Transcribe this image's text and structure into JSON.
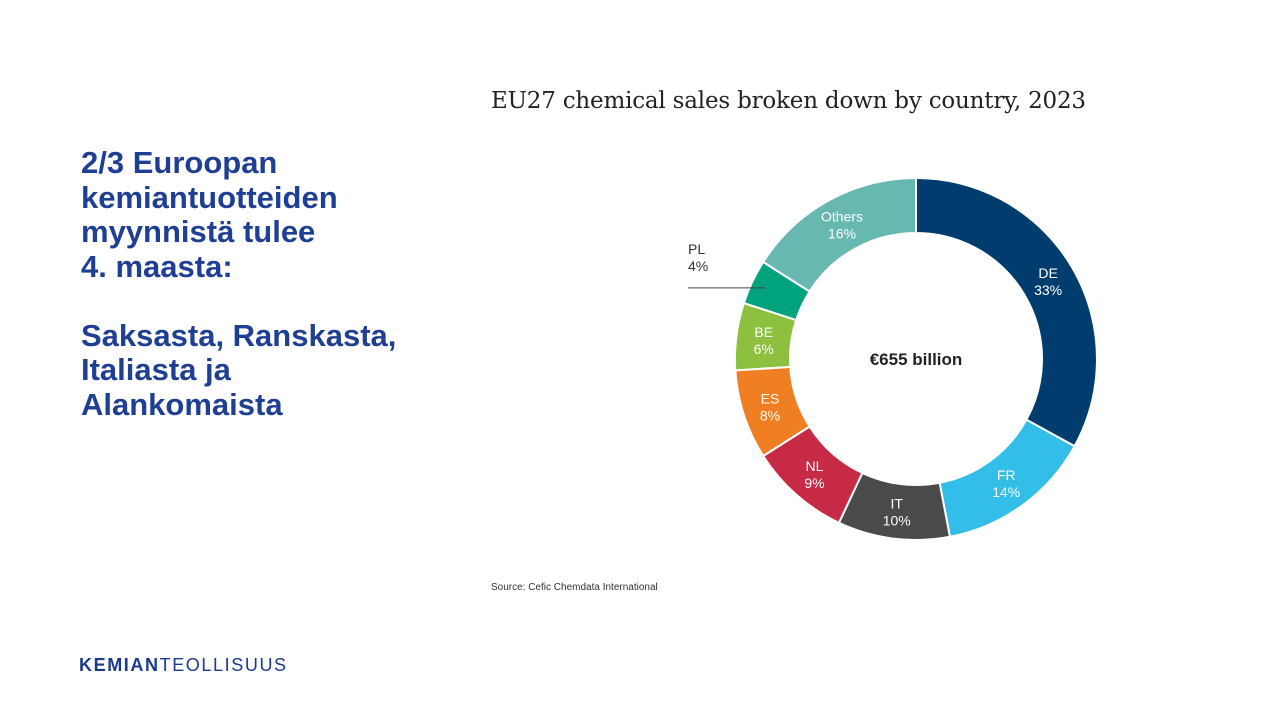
{
  "headline": {
    "lines": [
      "2/3 Euroopan",
      "kemiantuotteiden",
      "myynnistä tulee",
      "4. maasta:"
    ],
    "lines2": [
      "Saksasta, Ranskasta,",
      "Italiasta ja",
      "Alankomaista"
    ]
  },
  "chart_data": {
    "type": "pie",
    "title": "EU27 chemical sales broken down by country, 2023",
    "center_label": "€655 billion",
    "slices": [
      {
        "label": "DE",
        "value": 33,
        "value_label": "33%",
        "color": "#003d6e"
      },
      {
        "label": "FR",
        "value": 14,
        "value_label": "14%",
        "color": "#33bde9"
      },
      {
        "label": "IT",
        "value": 10,
        "value_label": "10%",
        "color": "#4a4a4a"
      },
      {
        "label": "NL",
        "value": 9,
        "value_label": "9%",
        "color": "#c72a44"
      },
      {
        "label": "ES",
        "value": 8,
        "value_label": "8%",
        "color": "#f07f23"
      },
      {
        "label": "BE",
        "value": 6,
        "value_label": "6%",
        "color": "#8cc03e"
      },
      {
        "label": "PL",
        "value": 4,
        "value_label": "4%",
        "color": "#00a37e"
      },
      {
        "label": "Others",
        "value": 16,
        "value_label": "16%",
        "color": "#66b8b0"
      }
    ],
    "source": "Source: Cefic Chemdata International"
  },
  "logo": {
    "bold": "KEMIAN",
    "light": "TEOLLISUUS"
  }
}
